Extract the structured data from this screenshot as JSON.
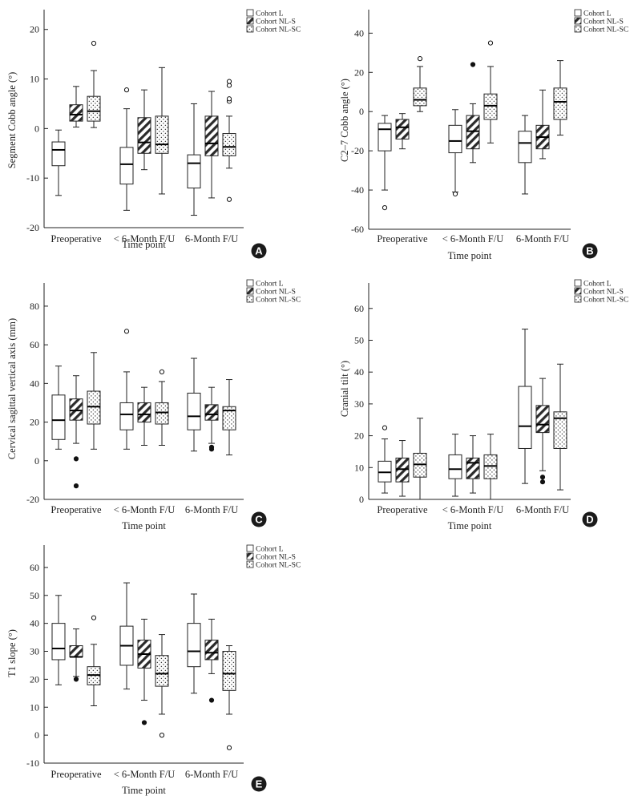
{
  "figure": {
    "badge_color": "#1a1a1a"
  },
  "legend": [
    {
      "name": "Cohort L",
      "pattern": "plain"
    },
    {
      "name": "Cohort NL-S",
      "pattern": "hatch"
    },
    {
      "name": "Cohort NL-SC",
      "pattern": "dots"
    }
  ],
  "chart_data": [
    {
      "id": "A",
      "type": "boxplot",
      "title": "",
      "xlabel": "Time point",
      "ylabel": "Segment Cobb angle (°)",
      "ylim": [
        -20,
        24
      ],
      "yticks": [
        -20,
        -10,
        0,
        10,
        20
      ],
      "categories": [
        "Preoperative",
        "< 6-Month F/U",
        "6-Month F/U"
      ],
      "series": [
        {
          "name": "Cohort L",
          "boxes": [
            {
              "min": -13.5,
              "q1": -7.5,
              "median": -4.3,
              "q3": -2.7,
              "max": -0.3,
              "outliers": []
            },
            {
              "min": -16.5,
              "q1": -11.2,
              "median": -7.2,
              "q3": -3.8,
              "max": 4.0,
              "outliers": [
                7.8
              ]
            },
            {
              "min": -17.5,
              "q1": -12.0,
              "median": -7.0,
              "q3": -5.3,
              "max": 5.0,
              "outliers": []
            }
          ]
        },
        {
          "name": "Cohort NL-S",
          "boxes": [
            {
              "min": 0.3,
              "q1": 1.5,
              "median": 2.8,
              "q3": 4.8,
              "max": 8.5,
              "outliers": []
            },
            {
              "min": -8.3,
              "q1": -5.0,
              "median": -2.8,
              "q3": 2.2,
              "max": 7.8,
              "outliers": []
            },
            {
              "min": -14.0,
              "q1": -5.5,
              "median": -3.0,
              "q3": 2.5,
              "max": 7.5,
              "outliers": []
            }
          ]
        },
        {
          "name": "Cohort NL-SC",
          "boxes": [
            {
              "min": 0.2,
              "q1": 1.5,
              "median": 3.5,
              "q3": 6.5,
              "max": 11.7,
              "outliers": [
                17.2
              ]
            },
            {
              "min": -13.2,
              "q1": -5.0,
              "median": -3.2,
              "q3": 2.5,
              "max": 12.3,
              "outliers": []
            },
            {
              "min": -8.0,
              "q1": -5.5,
              "median": -3.7,
              "q3": -1.0,
              "max": 2.5,
              "outliers": [
                5.5,
                6.0,
                8.7,
                9.5,
                -14.3
              ]
            }
          ]
        }
      ],
      "badge": "A"
    },
    {
      "id": "B",
      "type": "boxplot",
      "title": "",
      "xlabel": "Time point",
      "ylabel": "C2–7 Cobb angle (°)",
      "ylim": [
        -60,
        52
      ],
      "yticks": [
        -60,
        -40,
        -20,
        0,
        20,
        40
      ],
      "categories": [
        "Preoperative",
        "< 6-Month F/U",
        "6-Month F/U"
      ],
      "series": [
        {
          "name": "Cohort L",
          "boxes": [
            {
              "min": -40,
              "q1": -20,
              "median": -9,
              "q3": -6,
              "max": -2,
              "outliers": [
                -49
              ]
            },
            {
              "min": -41,
              "q1": -21,
              "median": -15,
              "q3": -7,
              "max": 1,
              "outliers": [
                -42
              ]
            },
            {
              "min": -42,
              "q1": -26,
              "median": -16,
              "q3": -10,
              "max": -2,
              "outliers": []
            }
          ]
        },
        {
          "name": "Cohort NL-S",
          "boxes": [
            {
              "min": -19,
              "q1": -14,
              "median": -8,
              "q3": -4,
              "max": -1,
              "outliers": []
            },
            {
              "min": -26,
              "q1": -19,
              "median": -10,
              "q3": -2,
              "max": 4,
              "outliers": [
                24
              ]
            },
            {
              "min": -24,
              "q1": -19,
              "median": -13,
              "q3": -7,
              "max": 11,
              "outliers": []
            }
          ]
        },
        {
          "name": "Cohort NL-SC",
          "boxes": [
            {
              "min": 0,
              "q1": 3,
              "median": 6,
              "q3": 12,
              "max": 23,
              "outliers": [
                27
              ]
            },
            {
              "min": -16,
              "q1": -4,
              "median": 3,
              "q3": 9,
              "max": 23,
              "outliers": [
                35
              ]
            },
            {
              "min": -12,
              "q1": -4,
              "median": 5,
              "q3": 12,
              "max": 26,
              "outliers": []
            }
          ]
        }
      ],
      "badge": "B"
    },
    {
      "id": "C",
      "type": "boxplot",
      "title": "",
      "xlabel": "Time point",
      "ylabel": "Cervical sagittal vertical axis (mm)",
      "ylim": [
        -20,
        92
      ],
      "yticks": [
        -20,
        0,
        20,
        40,
        60,
        80
      ],
      "categories": [
        "Preoperative",
        "< 6-Month F/U",
        "6-Month F/U"
      ],
      "series": [
        {
          "name": "Cohort L",
          "boxes": [
            {
              "min": 6,
              "q1": 11,
              "median": 21,
              "q3": 34,
              "max": 49,
              "outliers": []
            },
            {
              "min": 6,
              "q1": 16,
              "median": 24,
              "q3": 30,
              "max": 46,
              "outliers": [
                67
              ]
            },
            {
              "min": 5,
              "q1": 16,
              "median": 23,
              "q3": 35,
              "max": 53,
              "outliers": []
            }
          ]
        },
        {
          "name": "Cohort NL-S",
          "boxes": [
            {
              "min": 9,
              "q1": 21,
              "median": 26,
              "q3": 32,
              "max": 44,
              "outliers": [
                1,
                -13
              ]
            },
            {
              "min": 8,
              "q1": 20,
              "median": 24,
              "q3": 30,
              "max": 38,
              "outliers": []
            },
            {
              "min": 9,
              "q1": 21,
              "median": 24,
              "q3": 29,
              "max": 38,
              "outliers": [
                6,
                7
              ]
            }
          ]
        },
        {
          "name": "Cohort NL-SC",
          "boxes": [
            {
              "min": 6,
              "q1": 19,
              "median": 28,
              "q3": 36,
              "max": 56,
              "outliers": []
            },
            {
              "min": 8,
              "q1": 19,
              "median": 25,
              "q3": 30,
              "max": 41,
              "outliers": [
                46
              ]
            },
            {
              "min": 3,
              "q1": 16,
              "median": 26,
              "q3": 28,
              "max": 42,
              "outliers": []
            }
          ]
        }
      ],
      "badge": "C"
    },
    {
      "id": "D",
      "type": "boxplot",
      "title": "",
      "xlabel": "Time point",
      "ylabel": "Cranial tilt (°)",
      "ylim": [
        0,
        68
      ],
      "yticks": [
        0,
        10,
        20,
        30,
        40,
        50,
        60
      ],
      "categories": [
        "Preoperative",
        "< 6-Month F/U",
        "6-Month F/U"
      ],
      "series": [
        {
          "name": "Cohort L",
          "boxes": [
            {
              "min": 2,
              "q1": 5.5,
              "median": 8.5,
              "q3": 12,
              "max": 19,
              "outliers": [
                22.5
              ]
            },
            {
              "min": 1,
              "q1": 6.5,
              "median": 9.5,
              "q3": 14,
              "max": 20.5,
              "outliers": []
            },
            {
              "min": 5,
              "q1": 16,
              "median": 23,
              "q3": 35.5,
              "max": 53.5,
              "outliers": []
            }
          ]
        },
        {
          "name": "Cohort NL-S",
          "boxes": [
            {
              "min": 1,
              "q1": 5.5,
              "median": 9.5,
              "q3": 13,
              "max": 18.5,
              "outliers": []
            },
            {
              "min": 2,
              "q1": 6.5,
              "median": 11.5,
              "q3": 13,
              "max": 20,
              "outliers": []
            },
            {
              "min": 9,
              "q1": 21,
              "median": 23.5,
              "q3": 29.5,
              "max": 38,
              "outliers": [
                5.5,
                7
              ]
            }
          ]
        },
        {
          "name": "Cohort NL-SC",
          "boxes": [
            {
              "min": 0,
              "q1": 7,
              "median": 11,
              "q3": 14.5,
              "max": 25.5,
              "outliers": []
            },
            {
              "min": 0,
              "q1": 6.5,
              "median": 10.5,
              "q3": 14,
              "max": 20.5,
              "outliers": []
            },
            {
              "min": 3,
              "q1": 16,
              "median": 25.5,
              "q3": 27.5,
              "max": 42.5,
              "outliers": []
            }
          ]
        }
      ],
      "badge": "D"
    },
    {
      "id": "E",
      "type": "boxplot",
      "title": "",
      "xlabel": "Time point",
      "ylabel": "T1 slope (°)",
      "ylim": [
        -10,
        68
      ],
      "yticks": [
        -10,
        0,
        10,
        20,
        30,
        40,
        50,
        60
      ],
      "categories": [
        "Preoperative",
        "< 6-Month F/U",
        "6-Month F/U"
      ],
      "series": [
        {
          "name": "Cohort L",
          "boxes": [
            {
              "min": 18,
              "q1": 27,
              "median": 31,
              "q3": 40,
              "max": 50,
              "outliers": []
            },
            {
              "min": 16.5,
              "q1": 25,
              "median": 32,
              "q3": 39,
              "max": 54.5,
              "outliers": []
            },
            {
              "min": 15,
              "q1": 24.5,
              "median": 30,
              "q3": 40,
              "max": 50.5,
              "outliers": []
            }
          ]
        },
        {
          "name": "Cohort NL-S",
          "boxes": [
            {
              "min": 21,
              "q1": 28,
              "median": 28,
              "q3": 32,
              "max": 38,
              "outliers": [
                20
              ]
            },
            {
              "min": 12.5,
              "q1": 24,
              "median": 29,
              "q3": 34,
              "max": 41.5,
              "outliers": [
                4.5
              ]
            },
            {
              "min": 22,
              "q1": 27,
              "median": 29.5,
              "q3": 34,
              "max": 41.5,
              "outliers": [
                12.5
              ]
            }
          ]
        },
        {
          "name": "Cohort NL-SC",
          "boxes": [
            {
              "min": 10.5,
              "q1": 18,
              "median": 21.5,
              "q3": 24.5,
              "max": 32.5,
              "outliers": [
                42
              ]
            },
            {
              "min": 7.5,
              "q1": 17.5,
              "median": 22,
              "q3": 28.5,
              "max": 36,
              "outliers": [
                0
              ]
            },
            {
              "min": 7.5,
              "q1": 16,
              "median": 22,
              "q3": 30,
              "max": 32,
              "outliers": [
                -4.5
              ]
            }
          ]
        }
      ],
      "badge": "E"
    }
  ]
}
